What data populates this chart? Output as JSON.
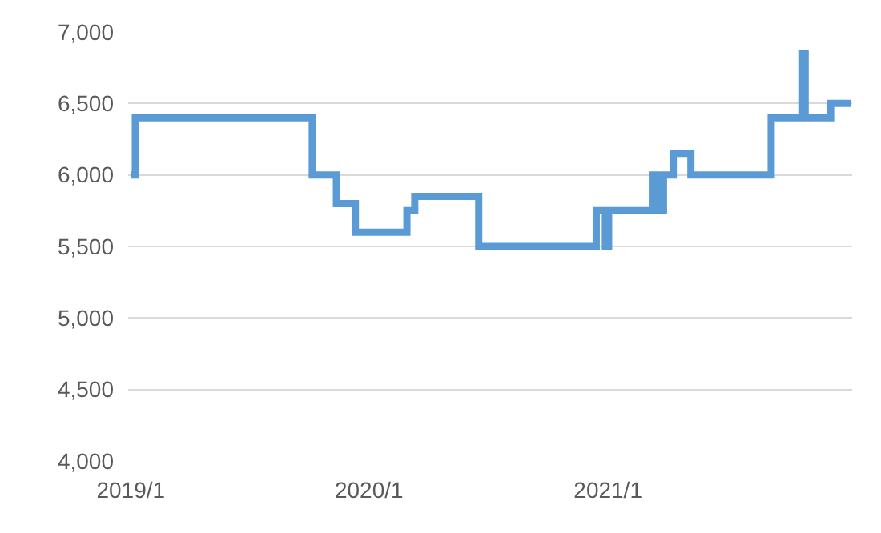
{
  "chart_data": {
    "type": "step",
    "x": [
      "2019-01-01",
      "2019-01-08",
      "2019-10-06",
      "2019-11-12",
      "2019-12-11",
      "2020-02-28",
      "2020-03-11",
      "2020-06-17",
      "2020-12-14",
      "2020-12-28",
      "2021-01-02",
      "2021-03-10",
      "2021-03-16",
      "2021-03-20",
      "2021-03-24",
      "2021-03-27",
      "2021-04-11",
      "2021-05-08",
      "2021-09-08",
      "2021-10-25",
      "2021-10-30",
      "2021-12-08",
      "2022-01-08"
    ],
    "series": [
      {
        "color": "#5b9bd5",
        "values": [
          6000,
          6400,
          6000,
          5800,
          5600,
          5750,
          5850,
          5500,
          5750,
          5500,
          5750,
          6000,
          5750,
          6000,
          5750,
          6000,
          6150,
          6000,
          6400,
          6850,
          6400,
          6500,
          6500
        ]
      }
    ],
    "xlim": [
      "2018-12-28",
      "2022-01-10"
    ],
    "xticks": [
      {
        "value": "2019-01-01",
        "label": "2019/1"
      },
      {
        "value": "2020-01-01",
        "label": "2020/1"
      },
      {
        "value": "2021-01-01",
        "label": "2021/1"
      }
    ],
    "ylim": [
      4000,
      7000
    ],
    "yticks": [
      {
        "value": 4000,
        "label": "4,000"
      },
      {
        "value": 4500,
        "label": "4,500"
      },
      {
        "value": 5000,
        "label": "5,000"
      },
      {
        "value": 5500,
        "label": "5,500"
      },
      {
        "value": 6000,
        "label": "6,000"
      },
      {
        "value": 6500,
        "label": "6,500"
      },
      {
        "value": 7000,
        "label": "7,000"
      }
    ],
    "grid": "y",
    "marker": "none",
    "line_style": "solid"
  }
}
